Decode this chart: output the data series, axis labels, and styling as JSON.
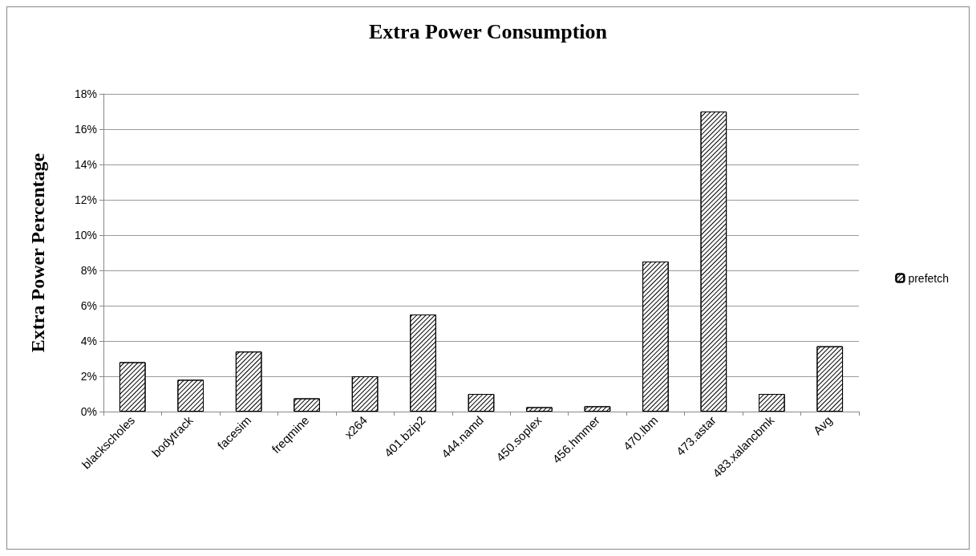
{
  "chart_data": {
    "type": "bar",
    "title": "Extra Power Consumption",
    "ylabel": "Extra Power Percentage",
    "categories": [
      "blackscholes",
      "bodytrack",
      "facesim",
      "freqmine",
      "x264",
      "401.bzip2",
      "444.namd",
      "450.soplex",
      "456.hmmer",
      "470.lbm",
      "473.astar",
      "483.xalancbmk",
      "Avg"
    ],
    "series": [
      {
        "name": "prefetch",
        "color": "#000000",
        "values": [
          2.8,
          1.8,
          3.4,
          0.75,
          2.0,
          5.5,
          1.0,
          0.25,
          0.3,
          8.5,
          17.0,
          1.0,
          3.7
        ]
      }
    ],
    "ylim": [
      0,
      18
    ],
    "yticks": [
      {
        "value": 0,
        "label": "0%"
      },
      {
        "value": 2,
        "label": "2%"
      },
      {
        "value": 4,
        "label": "4%"
      },
      {
        "value": 6,
        "label": "6%"
      },
      {
        "value": 8,
        "label": "8%"
      },
      {
        "value": 10,
        "label": "10%"
      },
      {
        "value": 12,
        "label": "12%"
      },
      {
        "value": 14,
        "label": "14%"
      },
      {
        "value": 16,
        "label": "16%"
      },
      {
        "value": 18,
        "label": "18%"
      }
    ],
    "grid": "y",
    "legend": "right"
  }
}
